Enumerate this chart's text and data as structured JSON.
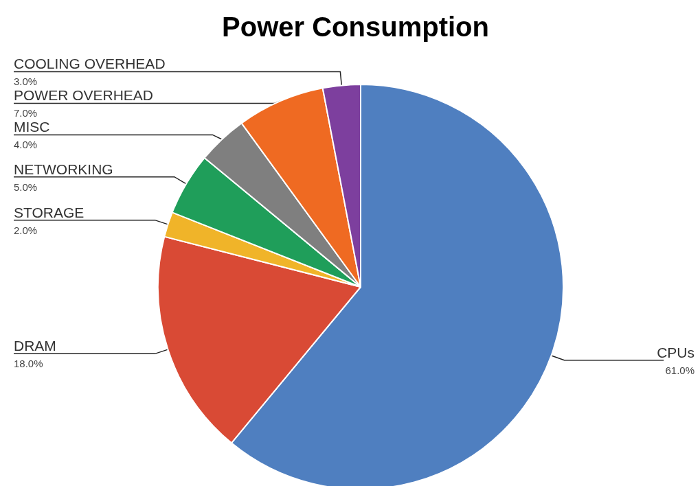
{
  "chart_data": {
    "type": "pie",
    "title": "Power Consumption",
    "categories": [
      "CPUs",
      "DRAM",
      "STORAGE",
      "NETWORKING",
      "MISC",
      "POWER OVERHEAD",
      "COOLING OVERHEAD"
    ],
    "values": [
      61,
      18,
      2,
      5,
      4,
      7,
      3
    ],
    "colors": [
      "#4f7fc0",
      "#d94a35",
      "#f0b429",
      "#1f9e5a",
      "#7f7f7f",
      "#ef6a22",
      "#7d3f9e"
    ],
    "value_labels": [
      "61.0%",
      "18.0%",
      "2.0%",
      "5.0%",
      "4.0%",
      "7.0%",
      "3.0%"
    ]
  }
}
